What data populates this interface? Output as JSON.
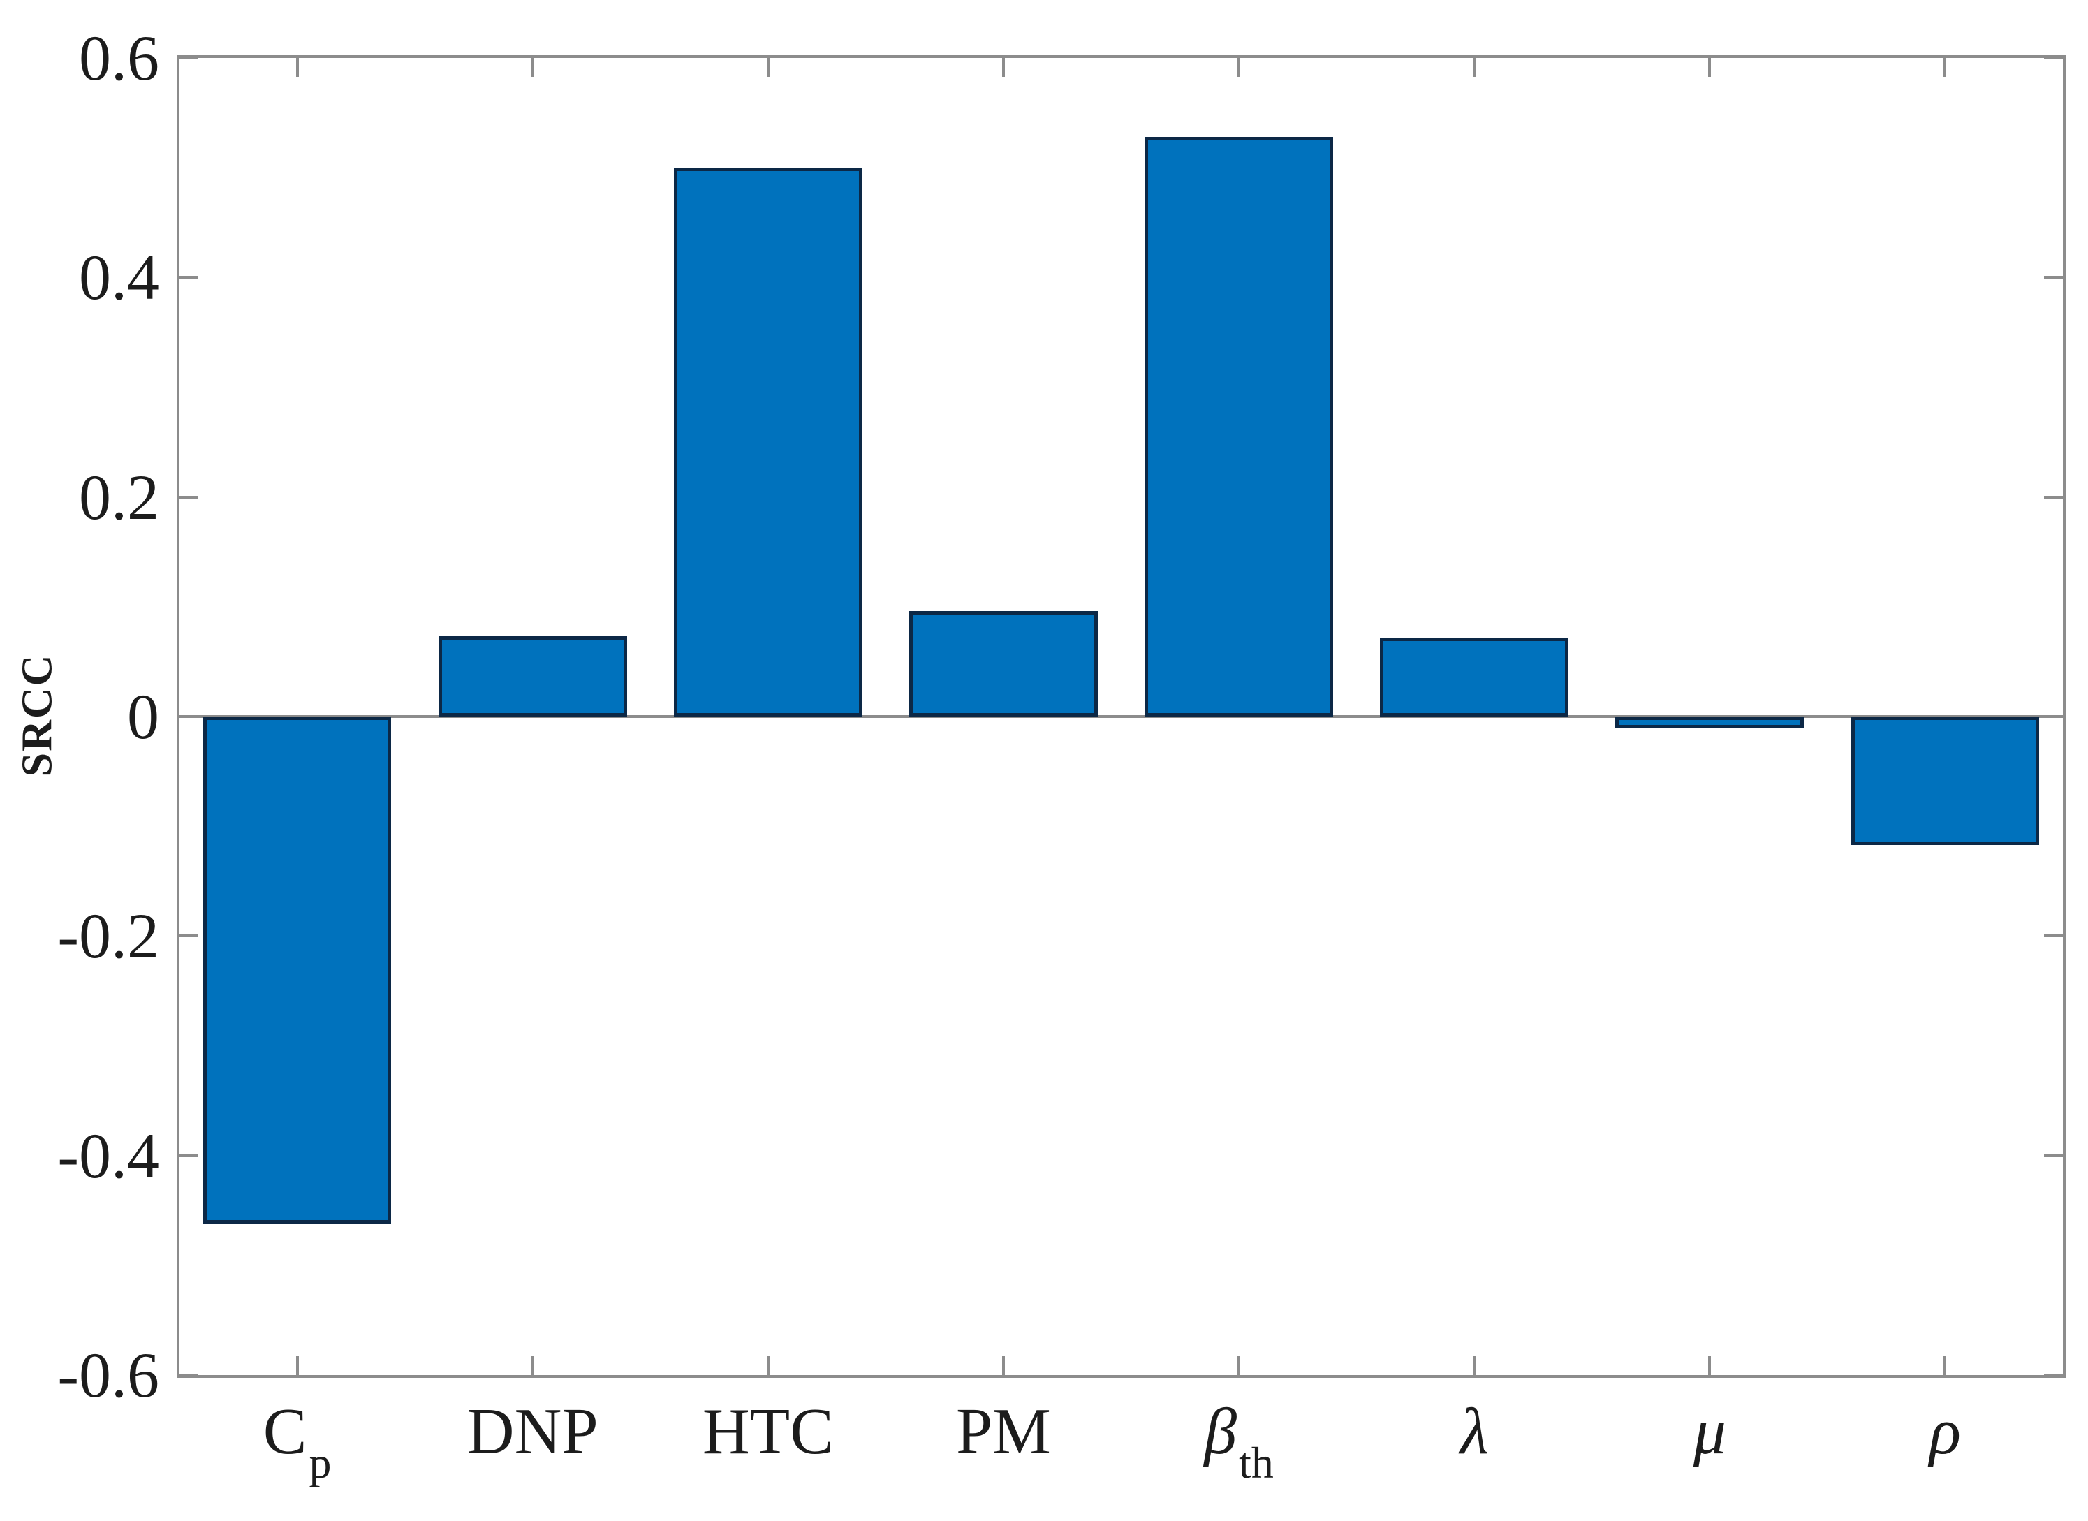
{
  "chart_data": {
    "type": "bar",
    "title": "",
    "xlabel": "",
    "ylabel": "SRCC",
    "ylim": [
      -0.6,
      0.6
    ],
    "grid": false,
    "legend": null,
    "bar_width_frac": 0.8,
    "colors": {
      "bar_fill": "#0072BD",
      "bar_edge": "#0c2846",
      "axis": "#8c8c8c",
      "text": "#1c1c1c"
    },
    "yticks": [
      {
        "value": 0.6,
        "label": "0.6"
      },
      {
        "value": 0.4,
        "label": "0.4"
      },
      {
        "value": 0.2,
        "label": "0.2"
      },
      {
        "value": 0.0,
        "label": "0"
      },
      {
        "value": -0.2,
        "label": "-0.2"
      },
      {
        "value": -0.4,
        "label": "-0.4"
      },
      {
        "value": -0.6,
        "label": "-0.6"
      }
    ],
    "categories": [
      {
        "label": "C_p",
        "base": "C",
        "sub": "p",
        "italic": false
      },
      {
        "label": "DNP",
        "base": "DNP",
        "sub": "",
        "italic": false
      },
      {
        "label": "HTC",
        "base": "HTC",
        "sub": "",
        "italic": false
      },
      {
        "label": "PM",
        "base": "PM",
        "sub": "",
        "italic": false
      },
      {
        "label": "beta_th",
        "base": "β",
        "sub": "th",
        "italic": true
      },
      {
        "label": "lambda",
        "base": "λ",
        "sub": "",
        "italic": true
      },
      {
        "label": "mu",
        "base": "μ",
        "sub": "",
        "italic": true
      },
      {
        "label": "rho",
        "base": "ρ",
        "sub": "",
        "italic": true
      }
    ],
    "values": [
      -0.462,
      0.073,
      0.5,
      0.096,
      0.528,
      0.072,
      -0.011,
      -0.117
    ]
  }
}
